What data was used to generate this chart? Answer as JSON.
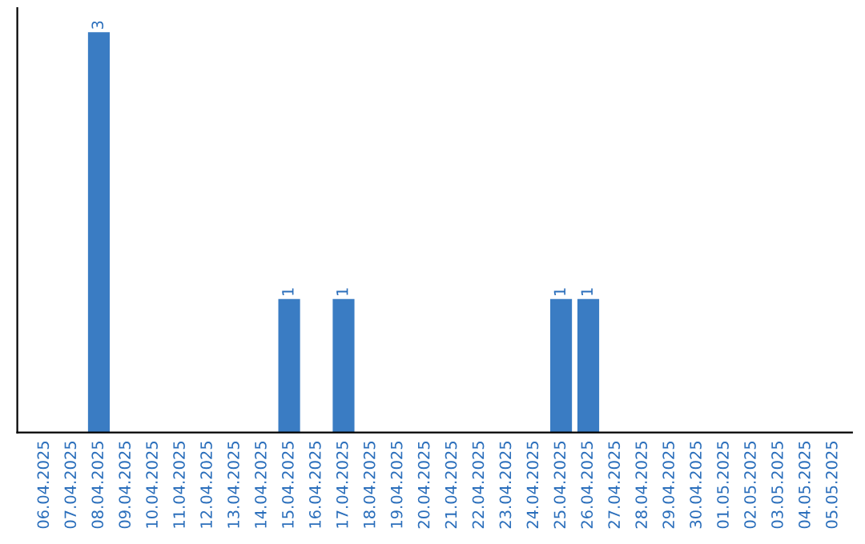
{
  "chart_data": {
    "type": "bar",
    "categories": [
      "06.04.2025",
      "07.04.2025",
      "08.04.2025",
      "09.04.2025",
      "10.04.2025",
      "11.04.2025",
      "12.04.2025",
      "13.04.2025",
      "14.04.2025",
      "15.04.2025",
      "16.04.2025",
      "17.04.2025",
      "18.04.2025",
      "19.04.2025",
      "20.04.2025",
      "21.04.2025",
      "22.04.2025",
      "23.04.2025",
      "24.04.2025",
      "25.04.2025",
      "26.04.2025",
      "27.04.2025",
      "28.04.2025",
      "29.04.2025",
      "30.04.2025",
      "01.05.2025",
      "02.05.2025",
      "03.05.2025",
      "04.05.2025",
      "05.05.2025"
    ],
    "values": [
      0,
      0,
      3,
      0,
      0,
      0,
      0,
      0,
      0,
      1,
      0,
      1,
      0,
      0,
      0,
      0,
      0,
      0,
      0,
      1,
      1,
      0,
      0,
      0,
      0,
      0,
      0,
      0,
      0,
      0
    ],
    "value_labels": [
      null,
      null,
      "3",
      null,
      null,
      null,
      null,
      null,
      null,
      "1",
      null,
      "1",
      null,
      null,
      null,
      null,
      null,
      null,
      null,
      "1",
      "1",
      null,
      null,
      null,
      null,
      null,
      null,
      null,
      null,
      null
    ],
    "color": "#3a7cc3",
    "tick_labels": "x",
    "grid": false
  }
}
